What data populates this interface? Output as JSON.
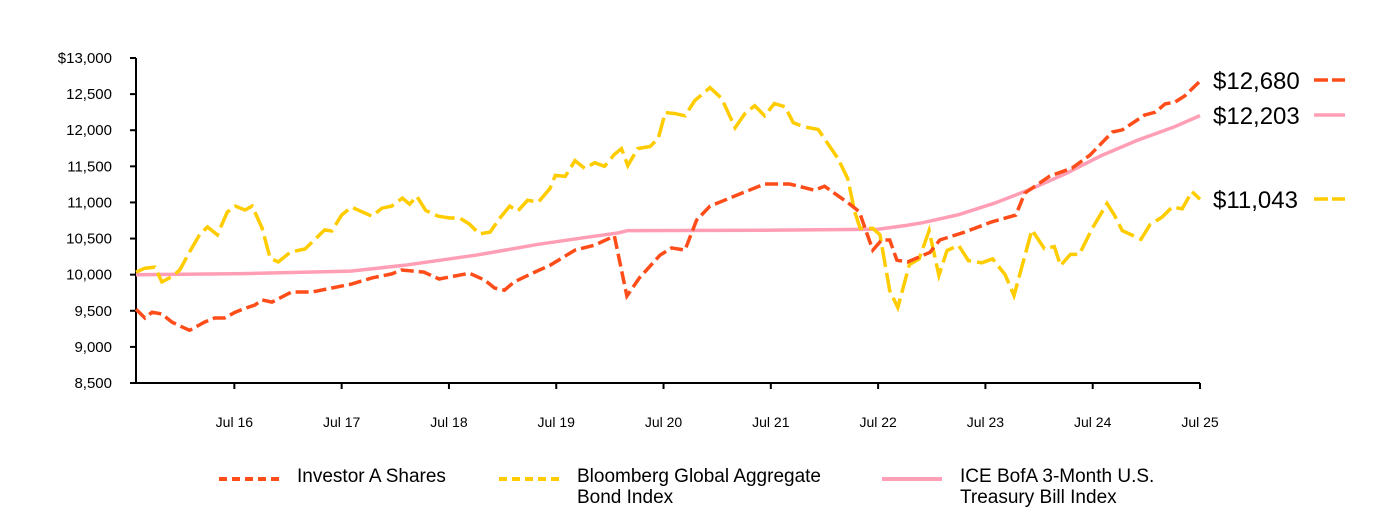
{
  "chart_data": {
    "type": "line",
    "title": "",
    "xlabel": "",
    "ylabel": "",
    "x_unit": "months since Aug 2015",
    "xlim": [
      0,
      119
    ],
    "ylim": [
      8500,
      13000
    ],
    "yticks": [
      8500,
      9000,
      9500,
      10000,
      10500,
      11000,
      11500,
      12000,
      12500,
      13000
    ],
    "ytick_labels": [
      "8,500",
      "9,000",
      "9,500",
      "10,000",
      "10,500",
      "11,000",
      "11,500",
      "12,000",
      "12,500",
      "$13,000"
    ],
    "xticks": [
      11,
      23,
      35,
      47,
      59,
      71,
      83,
      95,
      107,
      119
    ],
    "xtick_labels": [
      "Jul 16",
      "Jul 17",
      "Jul 18",
      "Jul 19",
      "Jul 20",
      "Jul 21",
      "Jul 22",
      "Jul 23",
      "Jul 24",
      "Jul 25"
    ],
    "grid": false,
    "legend_position": "bottom",
    "series": [
      {
        "name": "Investor A Shares",
        "color": "#FF4D1A",
        "style": "dashed",
        "end_label": "$12,680",
        "points": [
          [
            0,
            9520
          ],
          [
            1,
            9400
          ],
          [
            1.8,
            9480
          ],
          [
            2.9,
            9455
          ],
          [
            4,
            9345
          ],
          [
            4.9,
            9290
          ],
          [
            6,
            9230
          ],
          [
            7.7,
            9345
          ],
          [
            8.8,
            9400
          ],
          [
            9.9,
            9400
          ],
          [
            11.1,
            9480
          ],
          [
            12.2,
            9535
          ],
          [
            13.3,
            9580
          ],
          [
            14.1,
            9650
          ],
          [
            15.2,
            9620
          ],
          [
            16.3,
            9690
          ],
          [
            17.4,
            9760
          ],
          [
            19.7,
            9760
          ],
          [
            21.9,
            9815
          ],
          [
            24.1,
            9870
          ],
          [
            26.4,
            9955
          ],
          [
            28.6,
            10010
          ],
          [
            29.7,
            10065
          ],
          [
            32.2,
            10035
          ],
          [
            33.9,
            9940
          ],
          [
            37.3,
            10020
          ],
          [
            39,
            9925
          ],
          [
            40.1,
            9815
          ],
          [
            41.2,
            9785
          ],
          [
            42.3,
            9900
          ],
          [
            44.6,
            10035
          ],
          [
            46.3,
            10130
          ],
          [
            49.1,
            10340
          ],
          [
            51.3,
            10410
          ],
          [
            53.5,
            10535
          ],
          [
            54.9,
            9705
          ],
          [
            56.3,
            9955
          ],
          [
            58.6,
            10270
          ],
          [
            59.9,
            10370
          ],
          [
            61.4,
            10340
          ],
          [
            62.7,
            10755
          ],
          [
            64.2,
            10950
          ],
          [
            67,
            11090
          ],
          [
            70.3,
            11255
          ],
          [
            73.1,
            11255
          ],
          [
            75.9,
            11170
          ],
          [
            77,
            11225
          ],
          [
            79.8,
            10980
          ],
          [
            80.9,
            10870
          ],
          [
            82.4,
            10340
          ],
          [
            83.4,
            10480
          ],
          [
            84.3,
            10480
          ],
          [
            85.1,
            10200
          ],
          [
            86.3,
            10175
          ],
          [
            88.8,
            10310
          ],
          [
            89.9,
            10480
          ],
          [
            92.7,
            10590
          ],
          [
            95.7,
            10730
          ],
          [
            98.4,
            10825
          ],
          [
            99.4,
            11130
          ],
          [
            102.2,
            11365
          ],
          [
            104.7,
            11475
          ],
          [
            106.7,
            11655
          ],
          [
            109.2,
            11975
          ],
          [
            110.3,
            12005
          ],
          [
            112.8,
            12210
          ],
          [
            114,
            12250
          ],
          [
            115.1,
            12365
          ],
          [
            116.2,
            12390
          ],
          [
            117.3,
            12475
          ],
          [
            119,
            12680
          ]
        ]
      },
      {
        "name": "Bloomberg Global Aggregate Bond Index",
        "color": "#FFCC00",
        "style": "dashed",
        "end_label": "$11,043",
        "points": [
          [
            0,
            10035
          ],
          [
            1,
            10090
          ],
          [
            2.1,
            10105
          ],
          [
            2.9,
            9900
          ],
          [
            4,
            9970
          ],
          [
            4.9,
            10065
          ],
          [
            6,
            10315
          ],
          [
            7.1,
            10550
          ],
          [
            8,
            10660
          ],
          [
            9.1,
            10550
          ],
          [
            10.2,
            10865
          ],
          [
            11.1,
            10950
          ],
          [
            12.2,
            10895
          ],
          [
            13,
            10950
          ],
          [
            14.1,
            10645
          ],
          [
            15,
            10230
          ],
          [
            15.9,
            10175
          ],
          [
            17.3,
            10315
          ],
          [
            18.9,
            10355
          ],
          [
            21.1,
            10620
          ],
          [
            21.9,
            10605
          ],
          [
            23,
            10825
          ],
          [
            24.1,
            10935
          ],
          [
            26.4,
            10810
          ],
          [
            27.5,
            10920
          ],
          [
            28.6,
            10950
          ],
          [
            29.8,
            11060
          ],
          [
            30.6,
            10975
          ],
          [
            31.4,
            11085
          ],
          [
            32.4,
            10890
          ],
          [
            33.8,
            10810
          ],
          [
            35.1,
            10785
          ],
          [
            36.2,
            10785
          ],
          [
            37.3,
            10700
          ],
          [
            38.4,
            10565
          ],
          [
            39.6,
            10590
          ],
          [
            40.7,
            10785
          ],
          [
            41.8,
            10950
          ],
          [
            42.7,
            10880
          ],
          [
            43.8,
            11030
          ],
          [
            45,
            11005
          ],
          [
            46.3,
            11195
          ],
          [
            46.9,
            11375
          ],
          [
            48,
            11360
          ],
          [
            49.1,
            11580
          ],
          [
            50.2,
            11470
          ],
          [
            51.3,
            11550
          ],
          [
            52.4,
            11500
          ],
          [
            53.5,
            11665
          ],
          [
            54.3,
            11745
          ],
          [
            55,
            11510
          ],
          [
            56.1,
            11745
          ],
          [
            57.5,
            11775
          ],
          [
            58.4,
            11885
          ],
          [
            59.2,
            12245
          ],
          [
            60.3,
            12230
          ],
          [
            61.4,
            12200
          ],
          [
            62.5,
            12410
          ],
          [
            64.2,
            12590
          ],
          [
            65.5,
            12440
          ],
          [
            67,
            12035
          ],
          [
            68.1,
            12230
          ],
          [
            69.2,
            12340
          ],
          [
            70.3,
            12200
          ],
          [
            71.4,
            12370
          ],
          [
            72.6,
            12325
          ],
          [
            73.5,
            12105
          ],
          [
            74.6,
            12050
          ],
          [
            76.3,
            12010
          ],
          [
            77.6,
            11775
          ],
          [
            78.5,
            11610
          ],
          [
            79.6,
            11330
          ],
          [
            80.4,
            10860
          ],
          [
            81,
            10640
          ],
          [
            82.4,
            10640
          ],
          [
            83.2,
            10555
          ],
          [
            84.3,
            9780
          ],
          [
            85.2,
            9545
          ],
          [
            86.5,
            10140
          ],
          [
            87.6,
            10220
          ],
          [
            88.7,
            10610
          ],
          [
            89.8,
            9990
          ],
          [
            90.7,
            10335
          ],
          [
            92,
            10405
          ],
          [
            93.1,
            10195
          ],
          [
            94.6,
            10165
          ],
          [
            95.8,
            10220
          ],
          [
            97.2,
            10000
          ],
          [
            98.2,
            9710
          ],
          [
            100.2,
            10620
          ],
          [
            101.6,
            10360
          ],
          [
            102.7,
            10390
          ],
          [
            103.4,
            10125
          ],
          [
            104.5,
            10280
          ],
          [
            105.5,
            10280
          ],
          [
            107,
            10650
          ],
          [
            108.6,
            10985
          ],
          [
            109.4,
            10830
          ],
          [
            110.3,
            10610
          ],
          [
            112.4,
            10490
          ],
          [
            113.4,
            10690
          ],
          [
            114.8,
            10800
          ],
          [
            115.9,
            10940
          ],
          [
            117,
            10910
          ],
          [
            118.1,
            11150
          ],
          [
            119,
            11043
          ]
        ]
      },
      {
        "name": "ICE BofA 3-Month U.S. Treasury Bill Index",
        "color": "#FF9EB5",
        "style": "solid",
        "end_label": "$12,203",
        "points": [
          [
            0,
            10000
          ],
          [
            12,
            10015
          ],
          [
            24,
            10050
          ],
          [
            30,
            10130
          ],
          [
            38,
            10270
          ],
          [
            45,
            10420
          ],
          [
            50,
            10510
          ],
          [
            54,
            10580
          ],
          [
            55,
            10610
          ],
          [
            70,
            10615
          ],
          [
            83,
            10630
          ],
          [
            86,
            10680
          ],
          [
            88,
            10720
          ],
          [
            92,
            10830
          ],
          [
            96,
            10990
          ],
          [
            100,
            11180
          ],
          [
            104,
            11400
          ],
          [
            108,
            11650
          ],
          [
            112,
            11860
          ],
          [
            116,
            12040
          ],
          [
            119,
            12203
          ]
        ]
      }
    ]
  },
  "legend": {
    "items": [
      {
        "label_lines": [
          "Investor A Shares"
        ]
      },
      {
        "label_lines": [
          "Bloomberg Global Aggregate",
          "Bond Index"
        ]
      },
      {
        "label_lines": [
          "ICE BofA 3-Month U.S.",
          "Treasury Bill Index"
        ]
      }
    ]
  }
}
